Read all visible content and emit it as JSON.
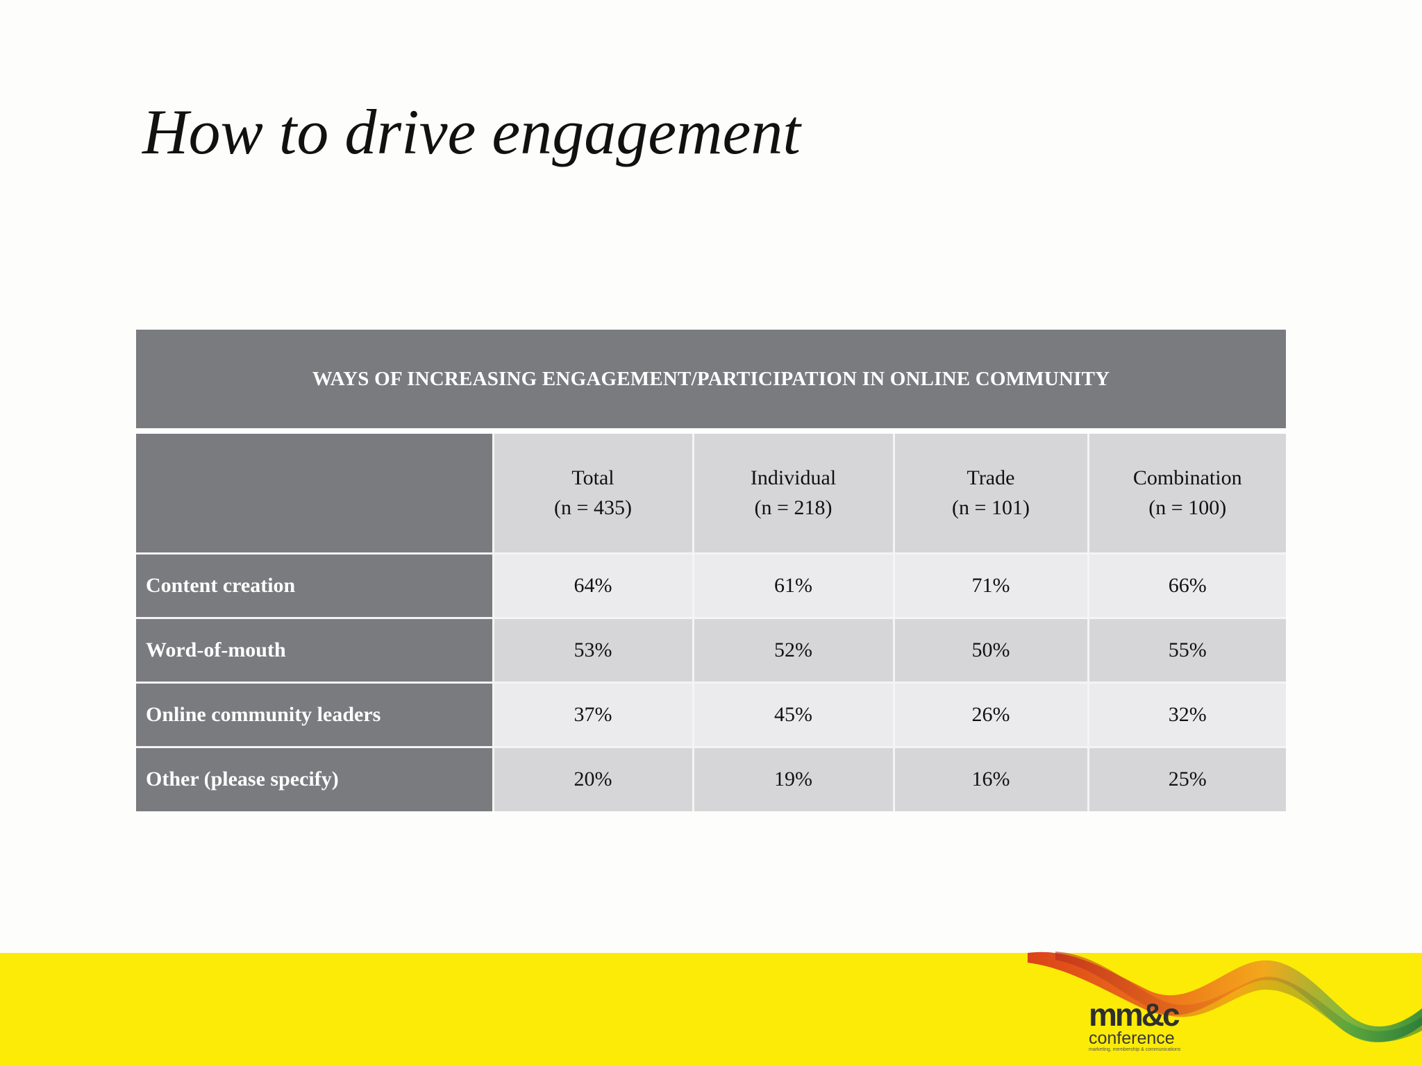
{
  "slide": {
    "title": "How to drive engagement"
  },
  "table": {
    "banner": "WAYS OF INCREASING ENGAGEMENT/PARTICIPATION IN ONLINE COMMUNITY",
    "columns": [
      {
        "name": "Total",
        "n": "(n = 435)"
      },
      {
        "name": "Individual",
        "n": "(n = 218)"
      },
      {
        "name": "Trade",
        "n": "(n = 101)"
      },
      {
        "name": "Combination",
        "n": "(n = 100)"
      }
    ],
    "rows": [
      {
        "label": "Content creation",
        "values": [
          "64%",
          "61%",
          "71%",
          "66%"
        ]
      },
      {
        "label": "Word-of-mouth",
        "values": [
          "53%",
          "52%",
          "50%",
          "55%"
        ]
      },
      {
        "label": "Online community leaders",
        "values": [
          "37%",
          "45%",
          "26%",
          "32%"
        ]
      },
      {
        "label": "Other (please specify)",
        "values": [
          "20%",
          "19%",
          "16%",
          "25%"
        ]
      }
    ]
  },
  "footer": {
    "logo_mark": "mm&c",
    "logo_word": "conference",
    "logo_tagline": "marketing, membership & communications",
    "band_color": "#fbeb07"
  }
}
